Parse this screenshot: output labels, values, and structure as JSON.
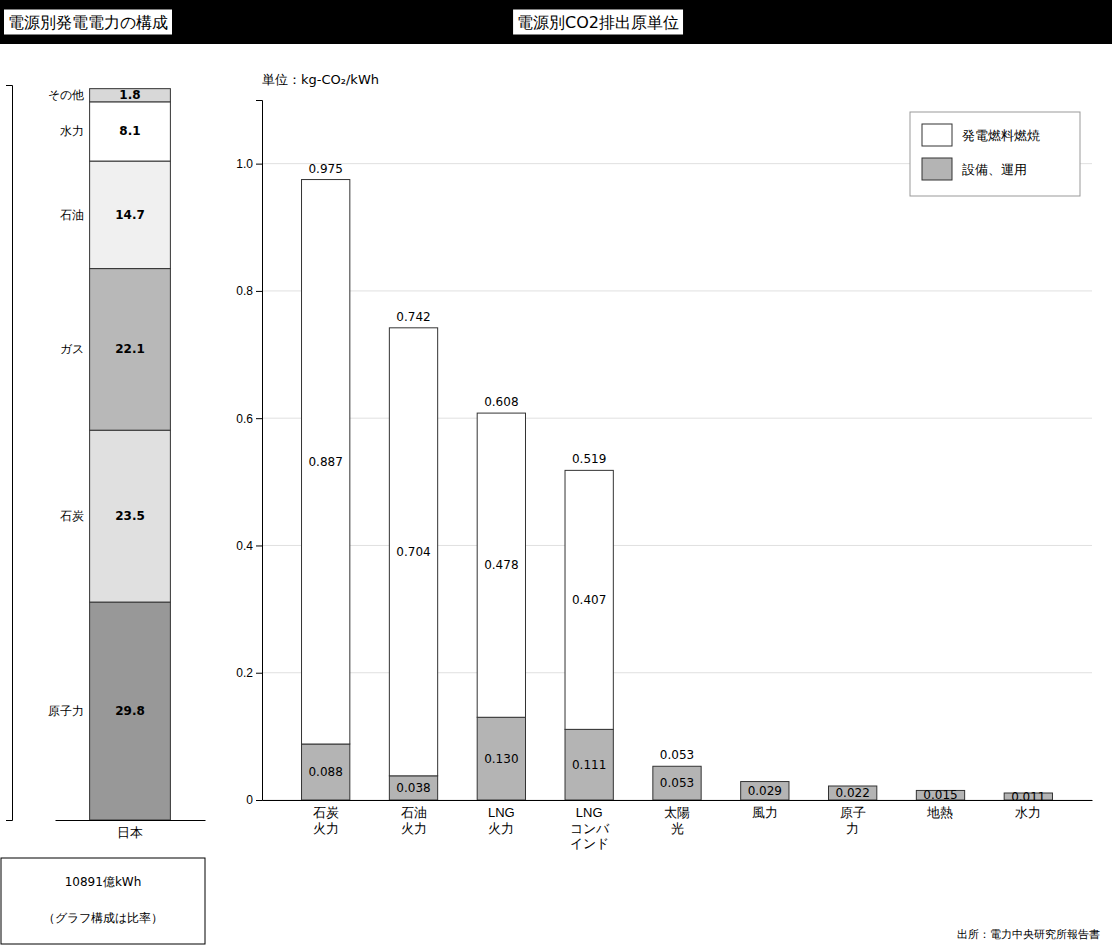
{
  "chart_data": [
    {
      "type": "bar",
      "stacked": true,
      "title": "電源別発電電力の構成",
      "categories": [
        "日本"
      ],
      "series": [
        {
          "name": "原子力",
          "color": "#989898",
          "values": [
            29.8
          ]
        },
        {
          "name": "石炭",
          "color": "#e0e0e0",
          "values": [
            23.5
          ]
        },
        {
          "name": "ガス",
          "color": "#b8b8b8",
          "values": [
            22.1
          ]
        },
        {
          "name": "石油",
          "color": "#f0f0f0",
          "values": [
            14.7
          ]
        },
        {
          "name": "水力",
          "color": "#ffffff",
          "values": [
            8.1
          ]
        },
        {
          "name": "その他",
          "color": "#d8d8d8",
          "values": [
            1.8
          ]
        }
      ],
      "ylim": [
        0,
        100.5
      ],
      "data_labels": true,
      "tick_labels": "x",
      "annotations": [
        "10891億kWh",
        "（グラフ構成は比率）"
      ]
    },
    {
      "type": "bar",
      "stacked": true,
      "title": "電源別CO2排出原単位",
      "subtitle": "単位：kg-CO₂/kWh",
      "categories": [
        "石炭\n火力",
        "石油\n火力",
        "LNG\n火力",
        "LNG\nコンバ\nインド",
        "太陽\n光",
        "風力",
        "原子\n力",
        "地熱",
        "水力"
      ],
      "series": [
        {
          "name": "設備、運用",
          "color": "#b4b4b4",
          "values": [
            0.088,
            0.038,
            0.13,
            0.111,
            0.053,
            0.029,
            0.022,
            0.015,
            0.011
          ],
          "value_labels": [
            "0.088",
            "0.038",
            "0.130",
            "0.111",
            "0.053",
            "0.029",
            "0.022",
            "0.015",
            "0.011"
          ]
        },
        {
          "name": "発電燃料燃焼",
          "color": "#ffffff",
          "values": [
            0.887,
            0.704,
            0.478,
            0.407,
            0.0,
            0.0,
            0.0,
            0.0,
            0.0
          ],
          "value_labels": [
            "0.887",
            "0.704",
            "0.478",
            "0.407",
            null,
            null,
            null,
            null,
            null
          ]
        }
      ],
      "totals": [
        0.975,
        0.742,
        0.608,
        0.519,
        0.053,
        0.029,
        0.022,
        0.015,
        0.011
      ],
      "total_labels": [
        "0.975",
        "0.742",
        "0.608",
        "0.519",
        "0.053",
        null,
        null,
        null,
        null
      ],
      "ylim": [
        0,
        1.1
      ],
      "yticks": [
        0,
        0.2,
        0.4,
        0.6,
        0.8,
        {
          "value": 1.0,
          "label": "1.0"
        }
      ],
      "grid": true,
      "legend": "upper right",
      "data_labels": true,
      "annotations": [
        "出所：電力中央研究所報告書"
      ]
    }
  ]
}
